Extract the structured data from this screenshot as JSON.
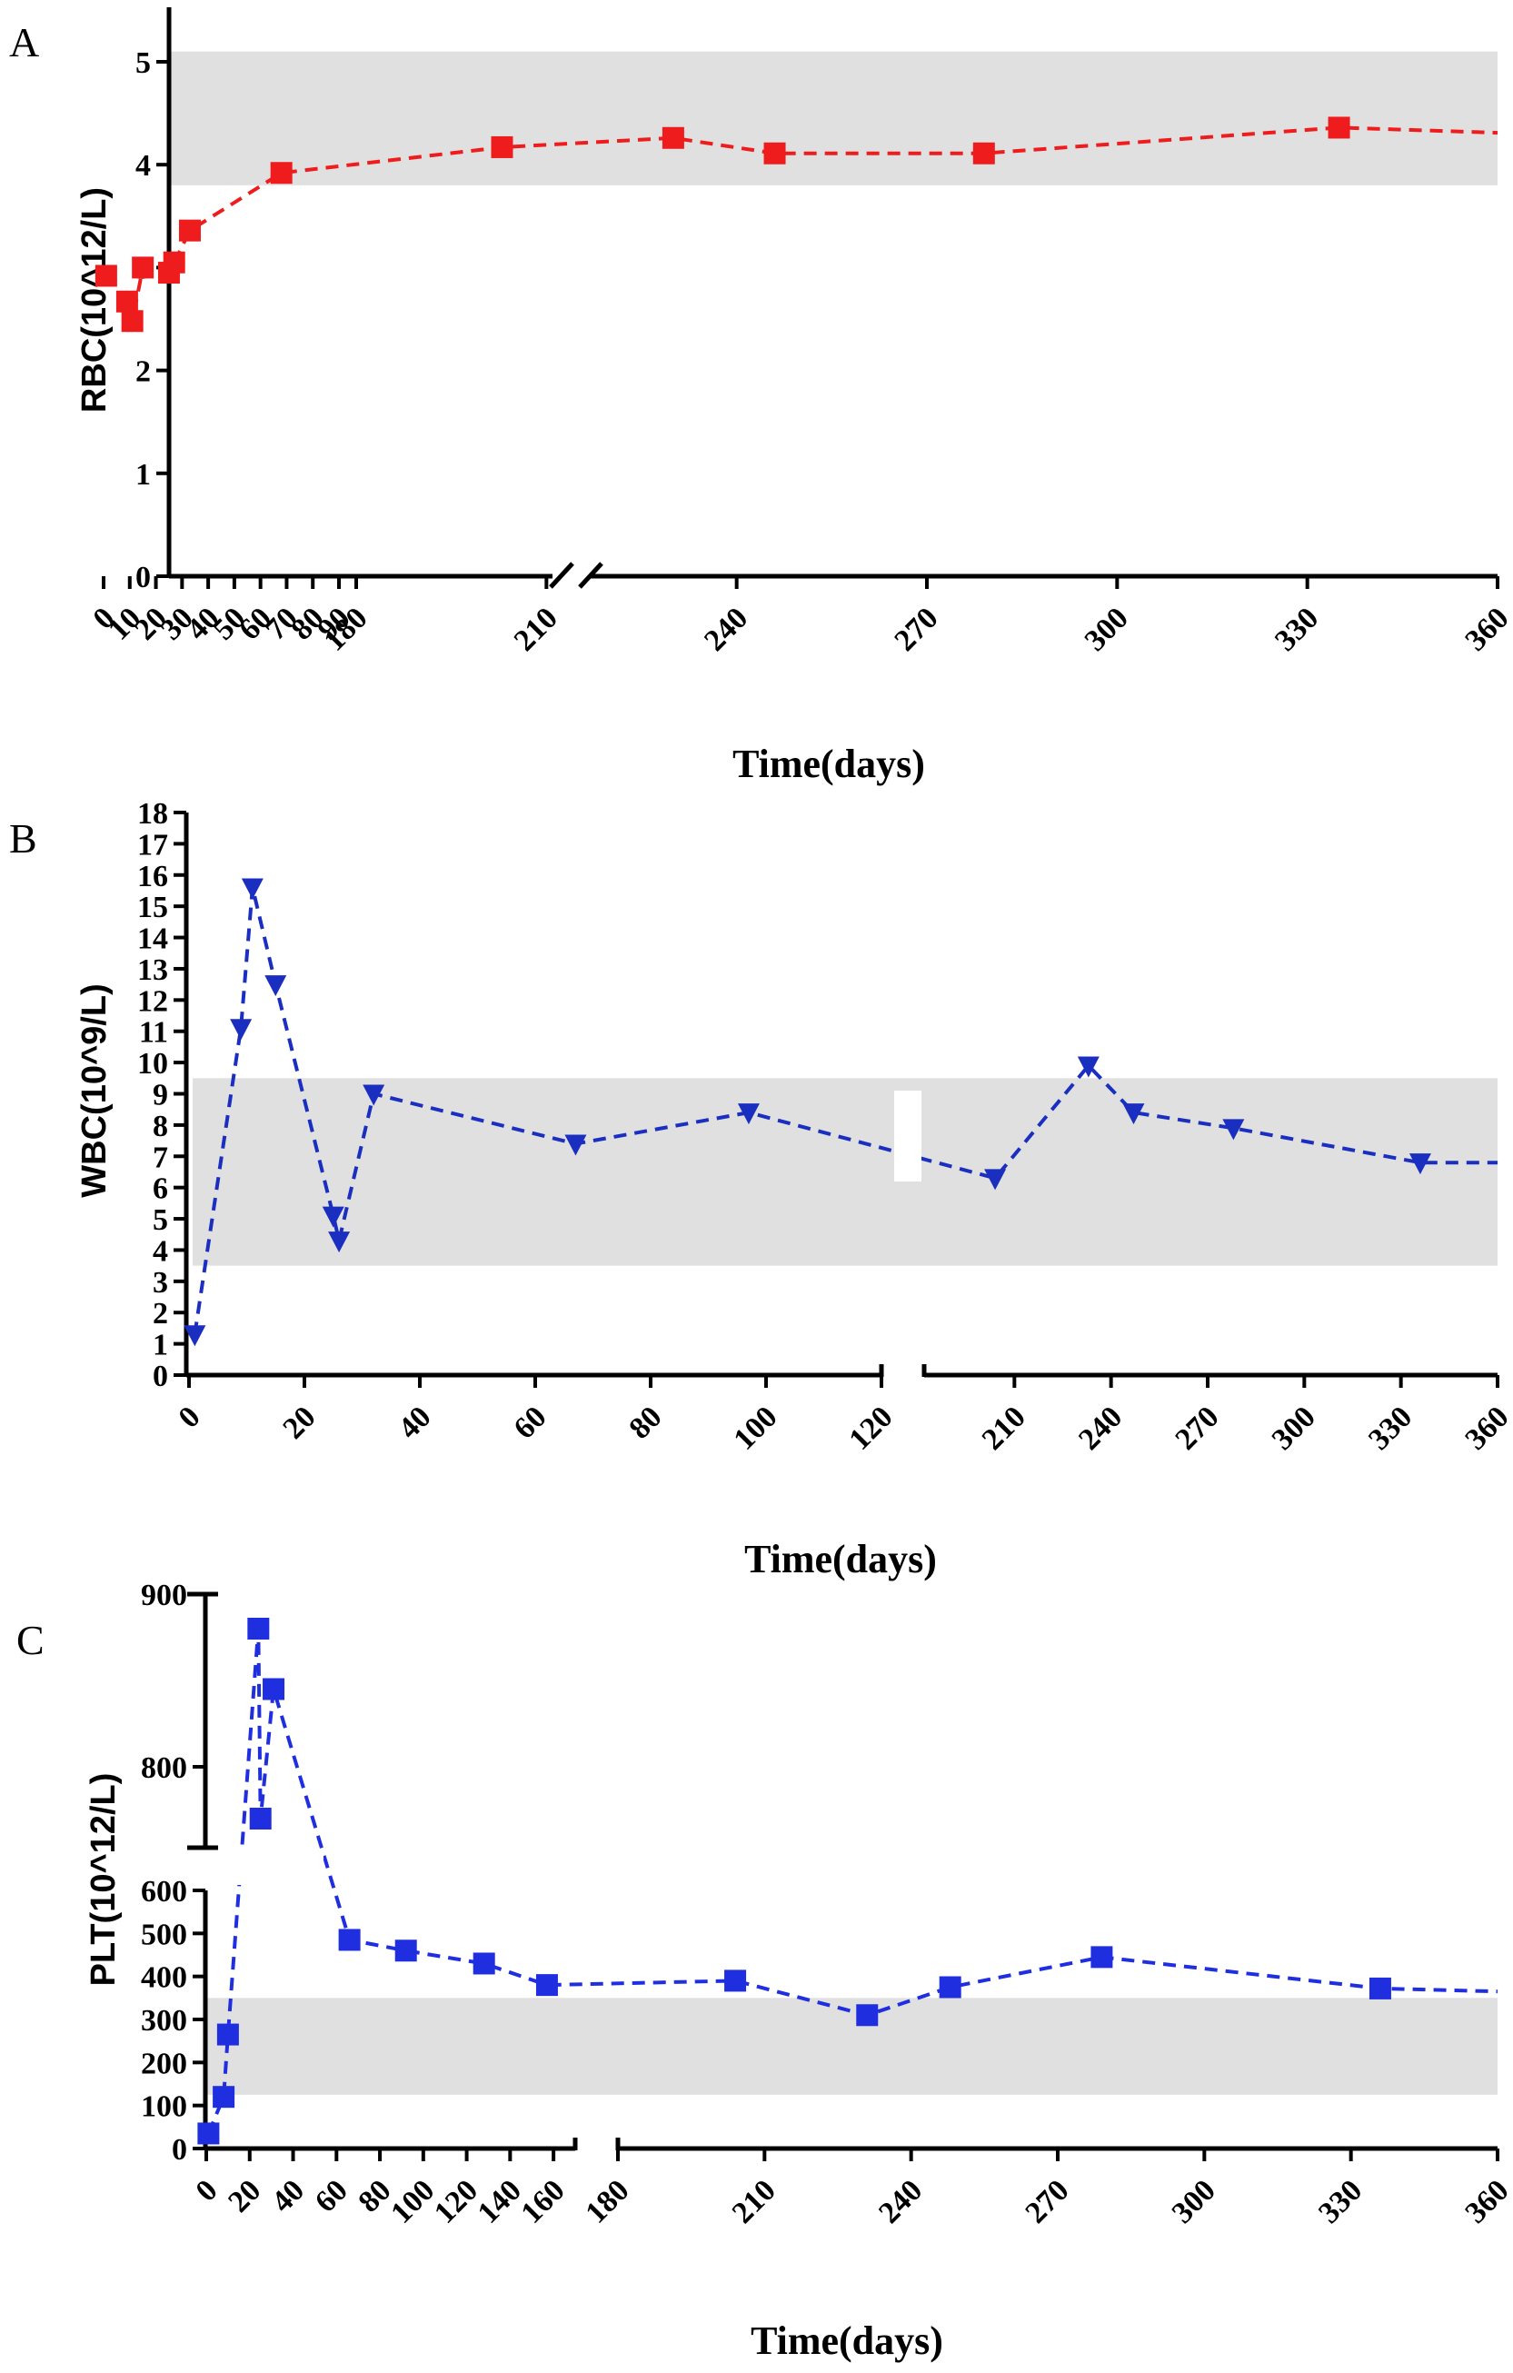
{
  "chart_data": [
    {
      "panel": "A",
      "type": "line",
      "ylabel": "RBC(10^12/L)",
      "xlabel": "Time(days)",
      "ylim": [
        0,
        5.5
      ],
      "yticks": [
        0,
        1,
        2,
        3,
        4,
        5
      ],
      "reference_band": [
        3.8,
        5.1
      ],
      "color": "#ee1c1c",
      "marker": "square",
      "axis_break": "after 90",
      "segments": [
        {
          "xlim": [
            0,
            90
          ],
          "xticks": [
            0,
            10,
            20,
            30,
            40,
            50,
            60,
            70,
            80,
            90
          ]
        },
        {
          "xlim": [
            180,
            360
          ],
          "xticks": [
            180,
            210,
            240,
            270,
            300,
            330,
            360
          ]
        }
      ],
      "series": [
        {
          "name": "RBC",
          "x": [
            1,
            9,
            11,
            15,
            25,
            27,
            33,
            68,
            203,
            230,
            246,
            279,
            335
          ],
          "values": [
            2.92,
            2.67,
            2.48,
            3.0,
            2.95,
            3.05,
            3.36,
            3.92,
            4.17,
            4.26,
            4.11,
            4.11,
            4.36
          ]
        }
      ],
      "trend_continuation": {
        "x": 360,
        "value": 4.31
      }
    },
    {
      "panel": "B",
      "type": "line",
      "ylabel": "WBC(10^9/L)",
      "xlabel": "Time(days)",
      "ylim": [
        0,
        18
      ],
      "yticks": [
        0,
        1,
        2,
        3,
        4,
        5,
        6,
        7,
        8,
        9,
        10,
        11,
        12,
        13,
        14,
        15,
        16,
        17,
        18
      ],
      "reference_band": [
        3.5,
        9.5
      ],
      "color": "#1a2fbf",
      "marker": "triangle-down",
      "axis_break": "after 120",
      "segments": [
        {
          "xlim": [
            0,
            120
          ],
          "xticks": [
            0,
            20,
            40,
            60,
            80,
            100,
            120
          ]
        },
        {
          "xlim": [
            180,
            360
          ],
          "xticks": [
            210,
            240,
            270,
            300,
            330,
            360
          ]
        }
      ],
      "series": [
        {
          "name": "WBC",
          "x": [
            1,
            9,
            11,
            15,
            25,
            26,
            32,
            67,
            97,
            204,
            233,
            247,
            278,
            336
          ],
          "values": [
            1.3,
            11.1,
            15.6,
            12.5,
            5.1,
            4.3,
            9.0,
            7.4,
            8.4,
            6.3,
            9.9,
            8.4,
            7.9,
            6.8
          ]
        }
      ],
      "trend_continuation": {
        "x": 360,
        "value": 6.8
      }
    },
    {
      "panel": "C",
      "type": "line",
      "ylabel": "PLT(10^12/L)",
      "xlabel": "Time(days)",
      "ylim_lower": [
        0,
        600
      ],
      "yticks_lower": [
        0,
        100,
        200,
        300,
        400,
        500,
        600
      ],
      "ylim_upper": [
        760,
        900
      ],
      "yticks_upper": [
        800,
        900
      ],
      "reference_band": [
        125,
        350
      ],
      "color": "#1f2fe0",
      "marker": "square",
      "axis_break": "after 170",
      "segments": [
        {
          "xlim": [
            0,
            170
          ],
          "xticks": [
            0,
            20,
            40,
            60,
            80,
            100,
            120,
            140,
            160
          ]
        },
        {
          "xlim": [
            180,
            360
          ],
          "xticks": [
            180,
            210,
            240,
            270,
            300,
            330,
            360
          ]
        }
      ],
      "series": [
        {
          "name": "PLT",
          "x": [
            1,
            8,
            10,
            24,
            25,
            31,
            66,
            92,
            128,
            157,
            204,
            231,
            248,
            279,
            336
          ],
          "values": [
            35,
            120,
            265,
            880,
            770,
            845,
            485,
            460,
            430,
            380,
            390,
            310,
            375,
            445,
            372
          ]
        }
      ],
      "trend_continuation": {
        "x": 360,
        "value": 365
      }
    }
  ]
}
